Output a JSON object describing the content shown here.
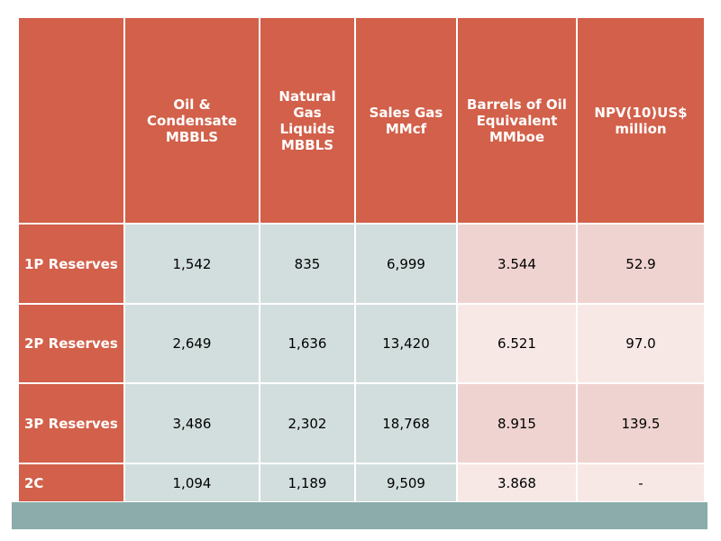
{
  "table": {
    "headers": [
      "",
      "Oil & Condensate MBBLS",
      "Natural Gas Liquids  MBBLS",
      "Sales Gas MMcf",
      "Barrels of Oil Equivalent MMboe",
      "NPV(10)US$ million"
    ],
    "rows": [
      {
        "label": "1P Reserves",
        "values": [
          "1,542",
          "835",
          "6,999",
          "3.544",
          "52.9"
        ]
      },
      {
        "label": "2P Reserves",
        "values": [
          "2,649",
          "1,636",
          "13,420",
          "6.521",
          "97.0"
        ]
      },
      {
        "label": "3P Reserves",
        "values": [
          "3,486",
          "2,302",
          "18,768",
          "8.915",
          "139.5"
        ]
      },
      {
        "label": "2C",
        "values": [
          "1,094",
          "1,189",
          "9,509",
          "3.868",
          "-"
        ]
      }
    ]
  },
  "colors": {
    "header": "#d2604a",
    "data_blue": "#d2dedd",
    "data_pink_dark": "#efd3d0",
    "data_pink_light": "#f7e8e6",
    "footer_band": "#8bacab"
  }
}
